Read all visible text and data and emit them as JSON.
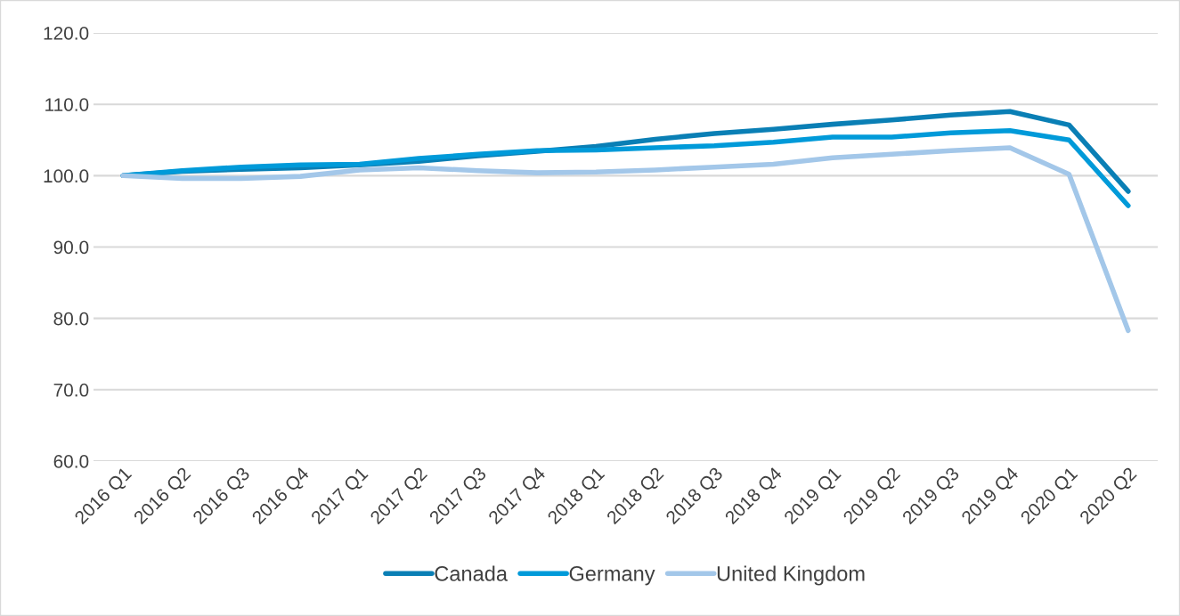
{
  "chart_data": {
    "type": "line",
    "categories": [
      "2016 Q1",
      "2016 Q2",
      "2016 Q3",
      "2016 Q4",
      "2017 Q1",
      "2017 Q2",
      "2017 Q3",
      "2017 Q4",
      "2018 Q1",
      "2018 Q2",
      "2018 Q3",
      "2018 Q4",
      "2019 Q1",
      "2019 Q2",
      "2019 Q3",
      "2019 Q4",
      "2020 Q1",
      "2020 Q2"
    ],
    "series": [
      {
        "name": "Canada",
        "color": "#0a7fb5",
        "values": [
          100,
          100.6,
          100.9,
          101.1,
          101.5,
          102.0,
          102.8,
          103.4,
          104.1,
          105.1,
          105.9,
          106.5,
          107.2,
          107.8,
          108.5,
          109.0,
          107.1,
          97.8
        ]
      },
      {
        "name": "Germany",
        "color": "#009ad9",
        "values": [
          100,
          100.7,
          101.2,
          101.5,
          101.6,
          102.4,
          103.0,
          103.5,
          103.6,
          103.9,
          104.2,
          104.7,
          105.4,
          105.4,
          106.0,
          106.3,
          105.0,
          95.8
        ]
      },
      {
        "name": "United Kingdom",
        "color": "#a3c7e9",
        "values": [
          100,
          99.6,
          99.6,
          99.9,
          100.8,
          101.1,
          100.7,
          100.4,
          100.5,
          100.8,
          101.2,
          101.6,
          102.5,
          103.0,
          103.5,
          103.9,
          100.2,
          78.3
        ]
      }
    ],
    "ylim": [
      60,
      120
    ],
    "yticks": [
      {
        "value": 60,
        "label": "60.0"
      },
      {
        "value": 70,
        "label": "70.0"
      },
      {
        "value": 80,
        "label": "80.0"
      },
      {
        "value": 90,
        "label": "90.0"
      },
      {
        "value": 100,
        "label": "100.0"
      },
      {
        "value": 110,
        "label": "110.0"
      },
      {
        "value": 120,
        "label": "120.0"
      }
    ],
    "grid": "y",
    "legend": "bottom",
    "marker": "none",
    "line_style": "solid"
  }
}
